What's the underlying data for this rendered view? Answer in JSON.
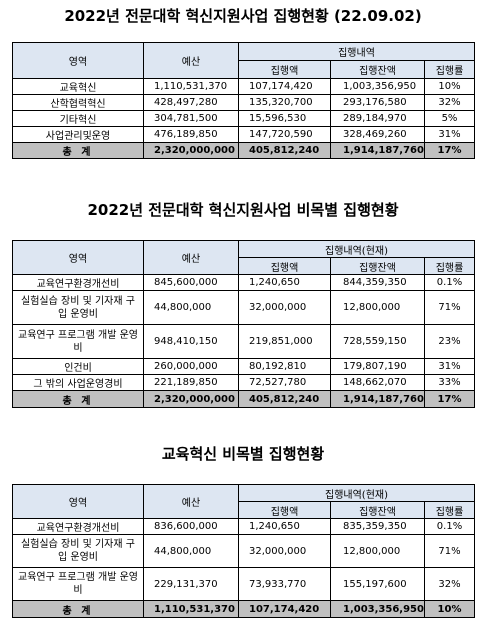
{
  "t1": {
    "title": "2022년 전문대학 혁신지원사업 집행현황 (22.09.02)",
    "h": {
      "item": "영역",
      "budget": "예산",
      "group": "집행내역",
      "spent": "집행액",
      "remain": "집행잔액",
      "rate": "집행률"
    },
    "rows": [
      {
        "name": "교육혁신",
        "budget": "1,110,531,370",
        "spent": "107,174,420",
        "remain": "1,003,356,950",
        "rate": "10%"
      },
      {
        "name": "산학협력혁신",
        "budget": "428,497,280",
        "spent": "135,320,700",
        "remain": "293,176,580",
        "rate": "32%"
      },
      {
        "name": "기타혁신",
        "budget": "304,781,500",
        "spent": "15,596,530",
        "remain": "289,184,970",
        "rate": "5%"
      },
      {
        "name": "사업관리및운영",
        "budget": "476,189,850",
        "spent": "147,720,590",
        "remain": "328,469,260",
        "rate": "31%"
      }
    ],
    "total": {
      "name": "총 계",
      "budget": "2,320,000,000",
      "spent": "405,812,240",
      "remain": "1,914,187,760",
      "rate": "17%"
    }
  },
  "t2": {
    "title": "2022년 전문대학 혁신지원사업 비목별 집행현황",
    "h": {
      "item": "영역",
      "budget": "예산",
      "group": "집행내역(현재)",
      "spent": "집행액",
      "remain": "집행잔액",
      "rate": "집행률"
    },
    "rows": [
      {
        "name": "교육연구환경개선비",
        "budget": "845,600,000",
        "spent": "1,240,650",
        "remain": "844,359,350",
        "rate": "0.1%"
      },
      {
        "name": "실험실습 장비 및 기자재 구입 운영비",
        "budget": "44,800,000",
        "spent": "32,000,000",
        "remain": "12,800,000",
        "rate": "71%"
      },
      {
        "name": "교육연구 프로그램 개발 운영비",
        "budget": "948,410,150",
        "spent": "219,851,000",
        "remain": "728,559,150",
        "rate": "23%"
      },
      {
        "name": "인건비",
        "budget": "260,000,000",
        "spent": "80,192,810",
        "remain": "179,807,190",
        "rate": "31%"
      },
      {
        "name": "그 밖의 사업운영경비",
        "budget": "221,189,850",
        "spent": "72,527,780",
        "remain": "148,662,070",
        "rate": "33%"
      }
    ],
    "total": {
      "name": "총 계",
      "budget": "2,320,000,000",
      "spent": "405,812,240",
      "remain": "1,914,187,760",
      "rate": "17%"
    }
  },
  "t3": {
    "title": "교육혁신 비목별 집행현황",
    "h": {
      "item": "영역",
      "budget": "예산",
      "group": "집행내역(현재)",
      "spent": "집행액",
      "remain": "집행잔액",
      "rate": "집행률"
    },
    "rows": [
      {
        "name": "교육연구환경개선비",
        "budget": "836,600,000",
        "spent": "1,240,650",
        "remain": "835,359,350",
        "rate": "0.1%"
      },
      {
        "name": "실험실습 장비 및 기자재 구입 운영비",
        "budget": "44,800,000",
        "spent": "32,000,000",
        "remain": "12,800,000",
        "rate": "71%"
      },
      {
        "name": "교육연구 프로그램 개발 운영비",
        "budget": "229,131,370",
        "spent": "73,933,770",
        "remain": "155,197,600",
        "rate": "32%"
      }
    ],
    "total": {
      "name": "총 계",
      "budget": "1,110,531,370",
      "spent": "107,174,420",
      "remain": "1,003,356,950",
      "rate": "10%"
    }
  }
}
